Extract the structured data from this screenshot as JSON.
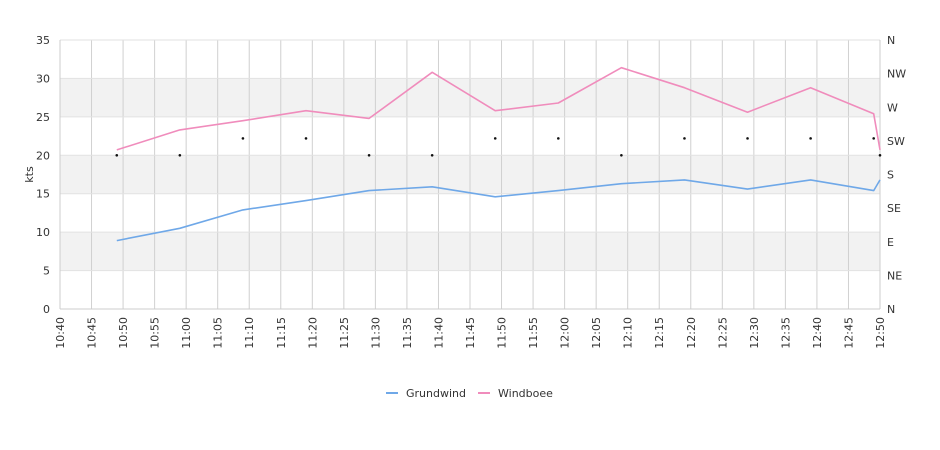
{
  "chart_data": {
    "type": "line",
    "ylabel": "kts",
    "ylim": [
      0,
      35
    ],
    "y_ticks": [
      "0",
      "5",
      "10",
      "15",
      "20",
      "25",
      "30",
      "35"
    ],
    "x_ticks": [
      "10:40",
      "10:45",
      "10:50",
      "10:55",
      "11:00",
      "11:05",
      "11:10",
      "11:15",
      "11:20",
      "11:25",
      "11:30",
      "11:35",
      "11:40",
      "11:45",
      "11:50",
      "11:55",
      "12:00",
      "12:05",
      "12:10",
      "12:15",
      "12:20",
      "12:25",
      "12:30",
      "12:35",
      "12:40",
      "12:45",
      "12:50"
    ],
    "xlim": [
      "10:40",
      "12:50"
    ],
    "right_axis_ticks": [
      "N",
      "NE",
      "E",
      "SE",
      "S",
      "SW",
      "W",
      "NW",
      "N"
    ],
    "grid": true,
    "legend_position": "bottom",
    "series": [
      {
        "name": "Grundwind",
        "color": "#6fa8e8",
        "x": [
          "10:49",
          "10:59",
          "11:09",
          "11:19",
          "11:29",
          "11:39",
          "11:49",
          "11:59",
          "12:09",
          "12:19",
          "12:29",
          "12:39",
          "12:49",
          "12:50"
        ],
        "values": [
          8.9,
          10.5,
          12.9,
          14.1,
          15.4,
          15.9,
          14.6,
          15.4,
          16.3,
          16.8,
          15.6,
          16.8,
          15.4,
          16.8
        ]
      },
      {
        "name": "Windboee",
        "color": "#f08cbc",
        "x": [
          "10:49",
          "10:59",
          "11:09",
          "11:19",
          "11:29",
          "11:39",
          "11:49",
          "11:59",
          "12:09",
          "12:19",
          "12:29",
          "12:39",
          "12:49",
          "12:50"
        ],
        "values": [
          20.7,
          23.3,
          24.5,
          25.8,
          24.8,
          30.8,
          25.8,
          26.8,
          31.4,
          28.8,
          25.6,
          28.8,
          25.4,
          20.7
        ]
      }
    ],
    "direction_markers": {
      "x": [
        "10:49",
        "10:59",
        "11:09",
        "11:19",
        "11:29",
        "11:39",
        "11:49",
        "11:59",
        "12:09",
        "12:19",
        "12:29",
        "12:39",
        "12:49",
        "12:50"
      ],
      "values": [
        20,
        20,
        22.2,
        22.2,
        20,
        20,
        22.2,
        22.2,
        20,
        22.2,
        22.2,
        22.2,
        22.2,
        20
      ]
    }
  }
}
